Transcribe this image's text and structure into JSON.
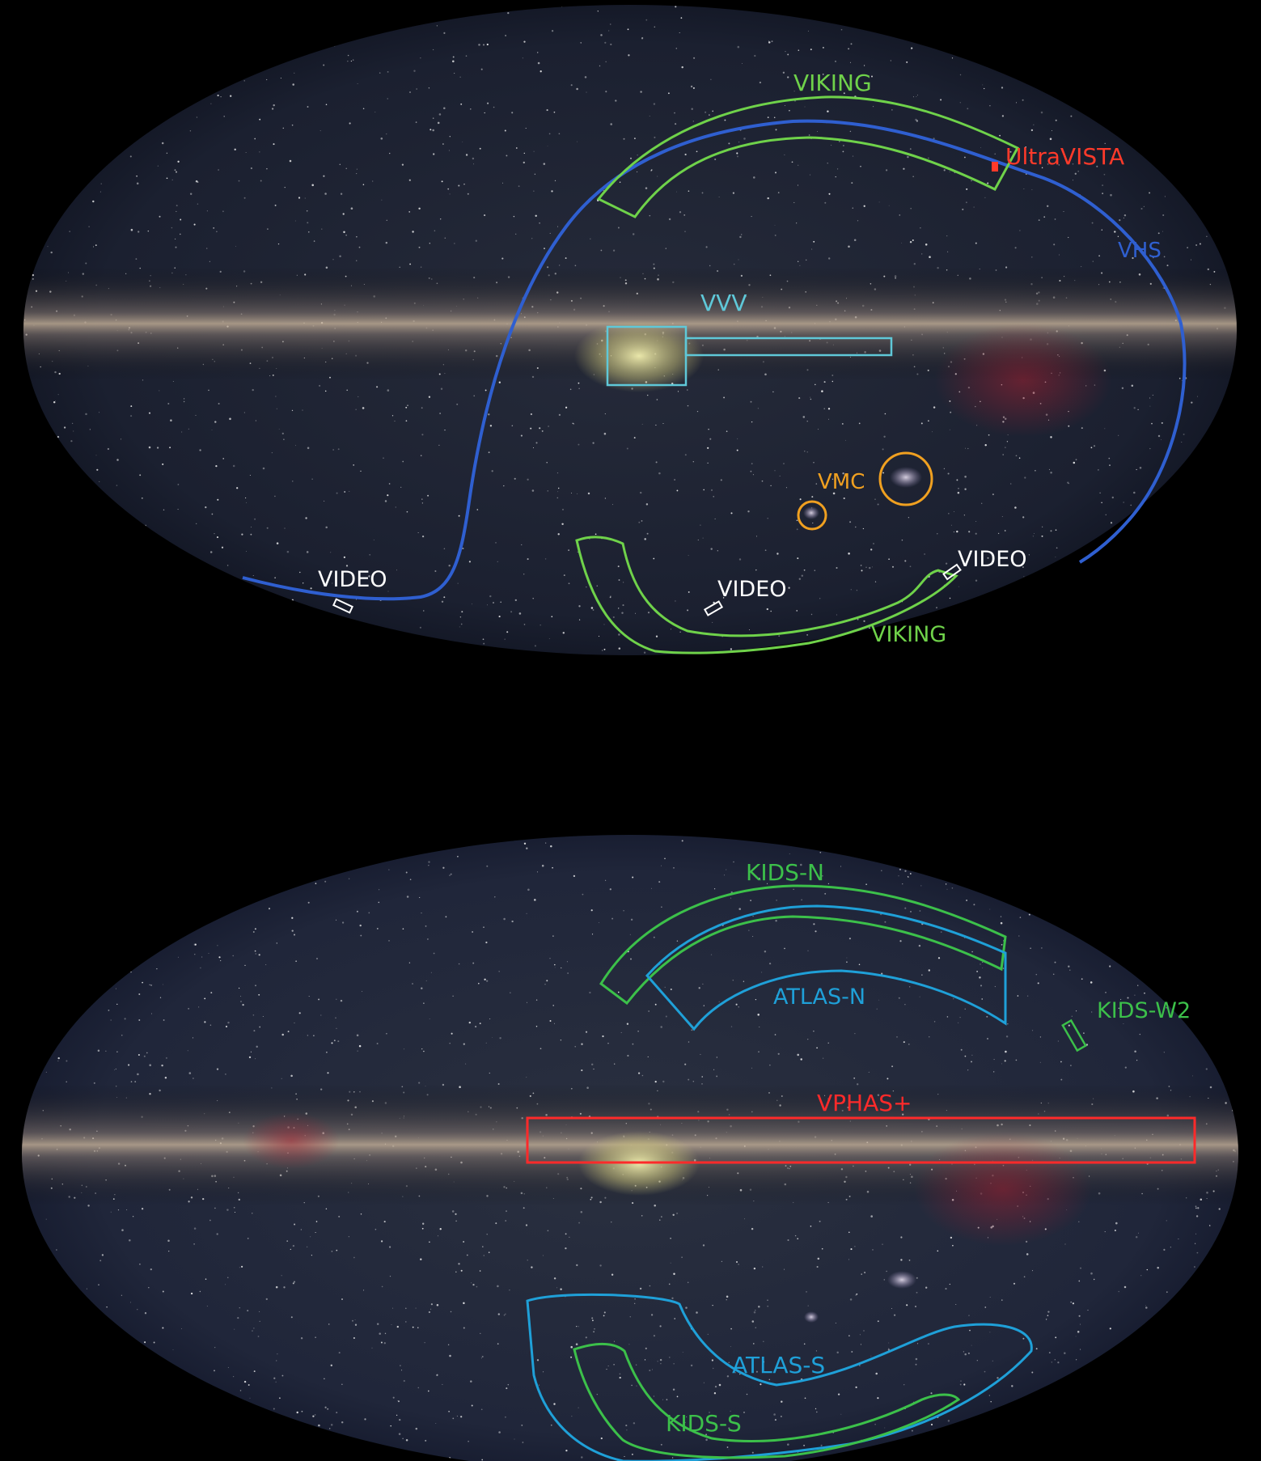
{
  "colors": {
    "background": "#000000",
    "sky_dark": "#1d2230",
    "sky_edge": "#0b0e16",
    "milky_way": "#c9b49a",
    "viking": "#6fd24a",
    "vhs": "#2f5fd0",
    "ultravista": "#ff3a2a",
    "vvv": "#5fc8d8",
    "vmc": "#f0a020",
    "video": "#ffffff",
    "kids": "#3cc04a",
    "atlas": "#1fa0d8",
    "vphas": "#ff2a2a"
  },
  "top_map": {
    "labels": {
      "viking_north": "VIKING",
      "ultravista": "UltraVISTA",
      "vhs": "VHS",
      "vvv": "VVV",
      "vmc": "VMC",
      "video_left": "VIDEO",
      "video_middle": "VIDEO",
      "video_right": "VIDEO",
      "viking_south": "VIKING"
    }
  },
  "bottom_map": {
    "labels": {
      "kids_n": "KIDS-N",
      "atlas_n": "ATLAS-N",
      "kids_w2": "KIDS-W2",
      "vphas": "VPHAS+",
      "atlas_s": "ATLAS-S",
      "kids_s": "KIDS-S"
    }
  }
}
